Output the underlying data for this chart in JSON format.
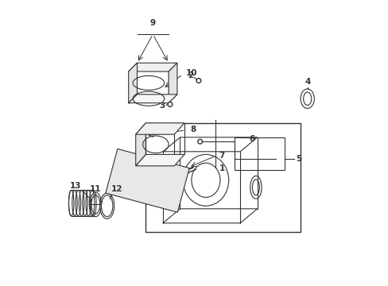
{
  "bg_color": "#ffffff",
  "line_color": "#333333",
  "fig_width": 4.89,
  "fig_height": 3.6,
  "dpi": 100
}
